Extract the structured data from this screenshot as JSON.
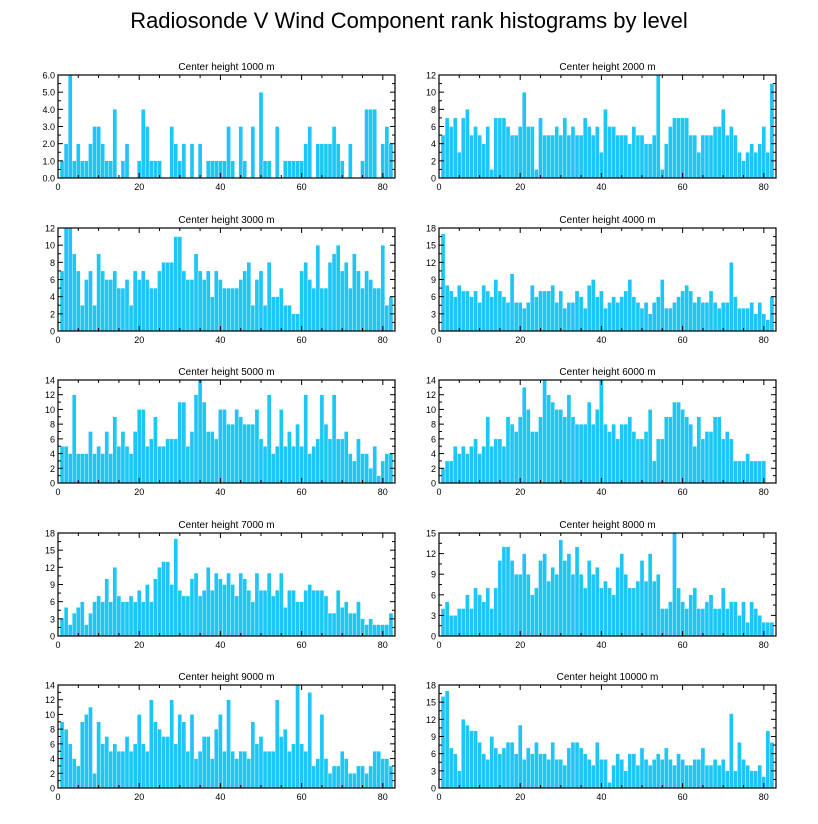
{
  "title": "Radiosonde V Wind Component rank histograms by level",
  "colors": {
    "bar": "#1ec6f5",
    "bar_edge": "#0fb6e8",
    "axis": "#000000",
    "background": "#ffffff"
  },
  "chart_data": [
    {
      "type": "bar",
      "title": "Center height 1000 m",
      "xlabel": "",
      "ylabel": "",
      "xticks": [
        0,
        20,
        40,
        60,
        80
      ],
      "yticks": [
        "0.0",
        "1.0",
        "2.0",
        "3.0",
        "4.0",
        "5.0",
        "6.0"
      ],
      "ylim": [
        0,
        6
      ],
      "x_start": 1,
      "values": [
        1,
        2,
        6,
        1,
        2,
        1,
        1,
        2,
        3,
        3,
        2,
        1,
        1,
        4,
        0,
        1,
        2,
        0,
        0,
        1,
        4,
        3,
        1,
        1,
        1,
        0,
        0,
        3,
        2,
        1,
        2,
        0,
        2,
        0,
        2,
        0,
        1,
        1,
        1,
        1,
        1,
        3,
        1,
        0,
        3,
        1,
        0,
        3,
        0,
        5,
        1,
        1,
        0,
        3,
        0,
        1,
        1,
        1,
        1,
        1,
        2,
        3,
        0,
        2,
        2,
        2,
        2,
        3,
        2,
        1,
        0,
        2,
        0,
        0,
        1,
        4,
        4,
        4,
        0,
        2,
        3,
        2
      ]
    },
    {
      "type": "bar",
      "title": "Center height 2000 m",
      "xlabel": "",
      "ylabel": "",
      "xticks": [
        0,
        20,
        40,
        60,
        80
      ],
      "yticks": [
        "0",
        "2",
        "4",
        "6",
        "8",
        "10",
        "12"
      ],
      "ylim": [
        0,
        12
      ],
      "x_start": 1,
      "values": [
        5,
        7,
        6,
        7,
        3,
        7,
        8,
        5,
        6,
        5,
        4,
        6,
        1,
        7,
        7,
        7,
        6,
        5,
        5,
        6,
        10,
        6,
        6,
        1,
        7,
        5,
        5,
        5,
        6,
        5,
        7,
        5,
        6,
        5,
        5,
        7,
        6,
        5,
        6,
        3,
        8,
        6,
        6,
        5,
        5,
        5,
        4,
        6,
        5,
        5,
        4,
        4,
        5,
        12,
        1,
        4,
        6,
        7,
        7,
        7,
        7,
        5,
        5,
        3,
        5,
        5,
        5,
        6,
        6,
        8,
        5,
        6,
        5,
        3,
        2,
        3,
        4,
        3,
        4,
        6,
        3,
        11
      ]
    },
    {
      "type": "bar",
      "title": "Center height 3000 m",
      "xlabel": "",
      "ylabel": "",
      "xticks": [
        0,
        20,
        40,
        60,
        80
      ],
      "yticks": [
        "0",
        "2",
        "4",
        "6",
        "8",
        "10",
        "12"
      ],
      "ylim": [
        0,
        12
      ],
      "x_start": 1,
      "values": [
        7,
        12,
        12,
        9,
        7,
        3,
        6,
        7,
        3,
        9,
        7,
        6,
        6,
        7,
        5,
        5,
        6,
        3,
        7,
        6,
        7,
        6,
        5,
        5,
        7,
        8,
        8,
        8,
        11,
        11,
        7,
        6,
        6,
        9,
        7,
        6,
        7,
        4,
        7,
        6,
        5,
        5,
        5,
        5,
        6,
        7,
        8,
        3,
        6,
        7,
        3,
        8,
        4,
        4,
        5,
        3,
        3,
        2,
        2,
        7,
        8,
        6,
        5,
        10,
        5,
        5,
        8,
        9,
        10,
        7,
        8,
        5,
        9,
        7,
        5,
        7,
        6,
        5,
        5,
        10,
        3,
        4
      ]
    },
    {
      "type": "bar",
      "title": "Center height 4000 m",
      "xlabel": "",
      "ylabel": "",
      "xticks": [
        0,
        20,
        40,
        60,
        80
      ],
      "yticks": [
        "0",
        "3",
        "6",
        "9",
        "12",
        "15",
        "18"
      ],
      "ylim": [
        0,
        18
      ],
      "x_start": 1,
      "values": [
        17,
        8,
        7,
        6,
        8,
        7,
        7,
        6,
        7,
        5,
        8,
        7,
        6,
        9,
        7,
        6,
        5,
        10,
        5,
        5,
        4,
        5,
        8,
        6,
        7,
        7,
        7,
        8,
        5,
        7,
        4,
        5,
        5,
        7,
        6,
        4,
        8,
        9,
        6,
        7,
        4,
        5,
        6,
        5,
        6,
        7,
        9,
        6,
        5,
        4,
        5,
        3,
        5,
        6,
        9,
        4,
        4,
        5,
        6,
        7,
        8,
        7,
        5,
        6,
        5,
        5,
        7,
        5,
        4,
        5,
        5,
        12,
        6,
        4,
        4,
        4,
        5,
        3,
        5,
        3,
        2,
        6
      ]
    },
    {
      "type": "bar",
      "title": "Center height 5000 m",
      "xlabel": "",
      "ylabel": "",
      "xticks": [
        0,
        20,
        40,
        60,
        80
      ],
      "yticks": [
        "0",
        "2",
        "4",
        "6",
        "8",
        "10",
        "12",
        "14"
      ],
      "ylim": [
        0,
        14
      ],
      "x_start": 1,
      "values": [
        5,
        5,
        4,
        12,
        4,
        4,
        4,
        7,
        4,
        5,
        4,
        7,
        4,
        9,
        5,
        7,
        5,
        4,
        7,
        10,
        10,
        5,
        6,
        9,
        5,
        5,
        6,
        6,
        6,
        11,
        11,
        5,
        7,
        12,
        14,
        11,
        7,
        7,
        6,
        10,
        10,
        8,
        8,
        10,
        9,
        8,
        8,
        8,
        10,
        6,
        5,
        12,
        4,
        5,
        10,
        5,
        7,
        5,
        8,
        5,
        12,
        4,
        5,
        6,
        12,
        8,
        6,
        12,
        6,
        6,
        7,
        4,
        3,
        6,
        4,
        4,
        2,
        5,
        1,
        3,
        4,
        4
      ]
    },
    {
      "type": "bar",
      "title": "Center height 6000 m",
      "xlabel": "",
      "ylabel": "",
      "xticks": [
        0,
        20,
        40,
        60,
        80
      ],
      "yticks": [
        "0",
        "2",
        "4",
        "6",
        "8",
        "10",
        "12",
        "14"
      ],
      "ylim": [
        0,
        14
      ],
      "x_start": 1,
      "values": [
        2,
        3,
        3,
        5,
        4,
        5,
        4,
        5,
        6,
        4,
        5,
        9,
        5,
        6,
        6,
        5,
        9,
        8,
        7,
        9,
        13,
        10,
        7,
        7,
        9,
        14,
        12,
        11,
        10,
        10,
        9,
        12,
        9,
        8,
        8,
        8,
        11,
        8,
        10,
        14,
        8,
        7,
        8,
        6,
        8,
        8,
        9,
        7,
        6,
        6,
        7,
        10,
        3,
        6,
        6,
        9,
        9,
        11,
        11,
        10,
        9,
        8,
        5,
        9,
        6,
        7,
        7,
        9,
        9,
        6,
        7,
        6,
        3,
        3,
        3,
        4,
        3,
        3,
        3,
        3,
        0,
        0
      ]
    },
    {
      "type": "bar",
      "title": "Center height 7000 m",
      "xlabel": "",
      "ylabel": "",
      "xticks": [
        0,
        20,
        40,
        60,
        80
      ],
      "yticks": [
        "0",
        "3",
        "6",
        "9",
        "12",
        "15",
        "18"
      ],
      "ylim": [
        0,
        18
      ],
      "x_start": 1,
      "values": [
        3,
        5,
        2,
        4,
        5,
        6,
        2,
        4,
        6,
        7,
        6,
        10,
        6,
        12,
        7,
        6,
        6,
        7,
        6,
        8,
        6,
        9,
        6,
        10,
        12,
        13,
        13,
        9,
        17,
        8,
        7,
        7,
        10,
        11,
        7,
        8,
        12,
        8,
        11,
        10,
        9,
        11,
        9,
        7,
        11,
        10,
        8,
        6,
        11,
        8,
        8,
        11,
        7,
        8,
        11,
        5,
        8,
        8,
        6,
        6,
        8,
        9,
        8,
        8,
        8,
        7,
        4,
        4,
        8,
        5,
        6,
        4,
        4,
        6,
        3,
        2,
        3,
        2,
        2,
        2,
        2,
        4
      ]
    },
    {
      "type": "bar",
      "title": "Center height 8000 m",
      "xlabel": "",
      "ylabel": "",
      "xticks": [
        0,
        20,
        40,
        60,
        80
      ],
      "yticks": [
        "0",
        "3",
        "6",
        "9",
        "12",
        "15"
      ],
      "ylim": [
        0,
        15
      ],
      "x_start": 1,
      "values": [
        4,
        5,
        3,
        3,
        4,
        4,
        6,
        4,
        7,
        6,
        5,
        7,
        4,
        7,
        11,
        13,
        13,
        11,
        9,
        9,
        12,
        9,
        6,
        7,
        11,
        12,
        8,
        10,
        9,
        14,
        11,
        12,
        9,
        13,
        9,
        7,
        11,
        9,
        10,
        7,
        8,
        7,
        6,
        10,
        12,
        9,
        7,
        7,
        8,
        11,
        8,
        12,
        8,
        9,
        4,
        4,
        5,
        15,
        7,
        5,
        4,
        6,
        7,
        4,
        4,
        5,
        6,
        4,
        4,
        7,
        4,
        5,
        5,
        3,
        5,
        2,
        5,
        4,
        3,
        2,
        2,
        2
      ]
    },
    {
      "type": "bar",
      "title": "Center height 9000 m",
      "xlabel": "",
      "ylabel": "",
      "xticks": [
        0,
        20,
        40,
        60,
        80
      ],
      "yticks": [
        "0",
        "2",
        "4",
        "6",
        "8",
        "10",
        "12",
        "14"
      ],
      "ylim": [
        0,
        14
      ],
      "x_start": 1,
      "values": [
        9,
        8,
        6,
        4,
        3,
        9,
        10,
        11,
        2,
        9,
        6,
        7,
        5,
        6,
        5,
        5,
        7,
        5,
        6,
        10,
        6,
        5,
        12,
        9,
        8,
        7,
        7,
        12,
        6,
        10,
        9,
        5,
        10,
        4,
        5,
        7,
        7,
        4,
        8,
        10,
        5,
        12,
        5,
        4,
        5,
        5,
        4,
        9,
        6,
        7,
        5,
        5,
        5,
        12,
        7,
        8,
        5,
        6,
        14,
        6,
        5,
        13,
        3,
        4,
        10,
        4,
        2,
        3,
        3,
        5,
        4,
        2,
        2,
        3,
        3,
        2,
        3,
        5,
        5,
        4,
        4,
        3
      ]
    },
    {
      "type": "bar",
      "title": "Center height 10000 m",
      "xlabel": "",
      "ylabel": "",
      "xticks": [
        0,
        20,
        40,
        60,
        80
      ],
      "yticks": [
        "0",
        "3",
        "6",
        "9",
        "12",
        "15",
        "18"
      ],
      "ylim": [
        0,
        18
      ],
      "x_start": 1,
      "values": [
        16,
        17,
        7,
        6,
        3,
        12,
        11,
        10,
        10,
        8,
        6,
        5,
        9,
        7,
        6,
        7,
        8,
        8,
        6,
        11,
        5,
        7,
        6,
        8,
        6,
        6,
        5,
        8,
        5,
        5,
        4,
        7,
        8,
        8,
        7,
        6,
        5,
        4,
        8,
        5,
        5,
        1,
        4,
        6,
        5,
        3,
        6,
        6,
        4,
        7,
        5,
        4,
        5,
        6,
        5,
        7,
        5,
        4,
        6,
        5,
        4,
        4,
        5,
        5,
        7,
        4,
        4,
        5,
        4,
        5,
        3,
        13,
        3,
        8,
        5,
        4,
        3,
        3,
        4,
        2,
        10,
        8
      ]
    }
  ]
}
